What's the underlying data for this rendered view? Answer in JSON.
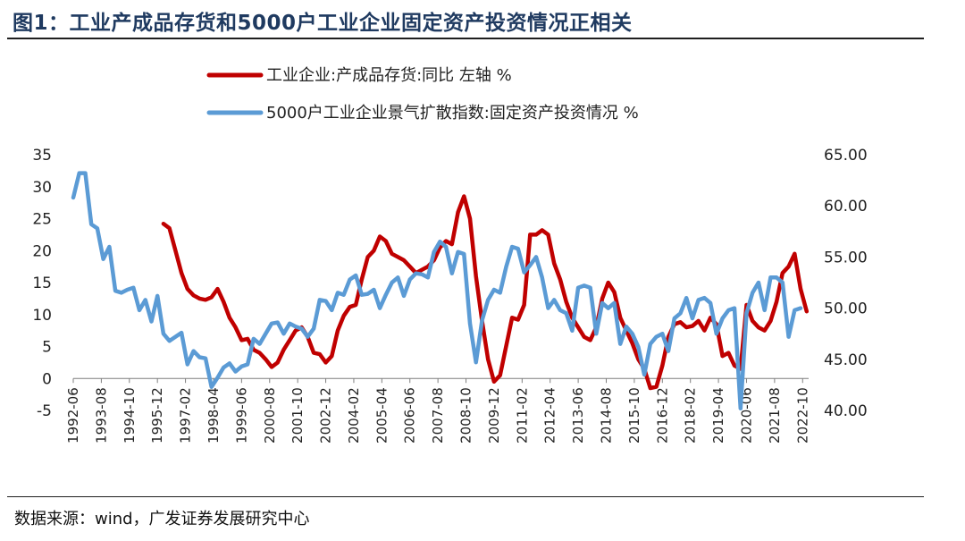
{
  "title": "图1：工业产成品存货和5000户工业企业固定资产投资情况正相关",
  "source": "数据来源：wind，广发证券发展研究中心",
  "colors": {
    "title": "#1f3a60",
    "red": "#c00000",
    "blue": "#5b9bd5"
  },
  "chart_data": {
    "type": "line",
    "legend_position": "top-center",
    "grid": false,
    "x_tick_labels": [
      "1992-06",
      "1993-08",
      "1994-10",
      "1995-12",
      "1997-02",
      "1998-04",
      "1999-06",
      "2000-08",
      "2001-10",
      "2002-12",
      "2004-02",
      "2005-04",
      "2006-06",
      "2007-08",
      "2008-10",
      "2009-12",
      "2011-02",
      "2012-04",
      "2013-06",
      "2014-08",
      "2015-10",
      "2016-12",
      "2018-02",
      "2019-04",
      "2020-06",
      "2021-08",
      "2022-10"
    ],
    "y_left": {
      "range": [
        -5,
        35
      ],
      "ticks": [
        "35",
        "30",
        "25",
        "20",
        "15",
        "10",
        "5",
        "0",
        "-5"
      ]
    },
    "y_right": {
      "range": [
        40,
        65
      ],
      "ticks": [
        "65.00",
        "60.00",
        "55.00",
        "50.00",
        "45.00",
        "40.00"
      ]
    },
    "series": [
      {
        "name": "工业企业:产成品存货:同比  左轴 %",
        "axis": "left",
        "color": "#c00000",
        "points": [
          [
            "1996-03",
            24.2
          ],
          [
            "1996-06",
            23.5
          ],
          [
            "1996-09",
            20.0
          ],
          [
            "1996-12",
            16.5
          ],
          [
            "1997-03",
            14.0
          ],
          [
            "1997-06",
            13.0
          ],
          [
            "1997-09",
            12.5
          ],
          [
            "1997-12",
            12.3
          ],
          [
            "1998-03",
            12.7
          ],
          [
            "1998-06",
            14.0
          ],
          [
            "1998-09",
            12.0
          ],
          [
            "1998-12",
            9.5
          ],
          [
            "1999-03",
            8.0
          ],
          [
            "1999-06",
            6.0
          ],
          [
            "1999-09",
            6.2
          ],
          [
            "1999-12",
            4.5
          ],
          [
            "2000-03",
            4.0
          ],
          [
            "2000-06",
            3.0
          ],
          [
            "2000-09",
            1.8
          ],
          [
            "2000-12",
            2.5
          ],
          [
            "2001-03",
            4.5
          ],
          [
            "2001-06",
            6.0
          ],
          [
            "2001-09",
            7.5
          ],
          [
            "2001-12",
            8.0
          ],
          [
            "2002-03",
            6.5
          ],
          [
            "2002-06",
            4.0
          ],
          [
            "2002-09",
            3.8
          ],
          [
            "2002-12",
            2.5
          ],
          [
            "2003-03",
            3.5
          ],
          [
            "2003-06",
            7.5
          ],
          [
            "2003-09",
            9.8
          ],
          [
            "2003-12",
            11.2
          ],
          [
            "2004-03",
            11.5
          ],
          [
            "2004-06",
            15.5
          ],
          [
            "2004-09",
            19.0
          ],
          [
            "2004-12",
            20.0
          ],
          [
            "2005-03",
            22.2
          ],
          [
            "2005-06",
            21.5
          ],
          [
            "2005-09",
            19.5
          ],
          [
            "2005-12",
            19.0
          ],
          [
            "2006-03",
            18.5
          ],
          [
            "2006-06",
            17.5
          ],
          [
            "2006-09",
            16.5
          ],
          [
            "2006-12",
            17.0
          ],
          [
            "2007-03",
            17.5
          ],
          [
            "2007-06",
            18.5
          ],
          [
            "2007-09",
            20.5
          ],
          [
            "2007-12",
            21.5
          ],
          [
            "2008-03",
            21.0
          ],
          [
            "2008-06",
            26.0
          ],
          [
            "2008-09",
            28.5
          ],
          [
            "2008-12",
            25.0
          ],
          [
            "2009-03",
            16.0
          ],
          [
            "2009-06",
            9.0
          ],
          [
            "2009-09",
            3.0
          ],
          [
            "2009-12",
            -0.5
          ],
          [
            "2010-03",
            0.5
          ],
          [
            "2010-06",
            5.0
          ],
          [
            "2010-09",
            9.5
          ],
          [
            "2010-12",
            9.2
          ],
          [
            "2011-03",
            11.5
          ],
          [
            "2011-06",
            22.5
          ],
          [
            "2011-09",
            22.5
          ],
          [
            "2011-12",
            23.2
          ],
          [
            "2012-03",
            22.5
          ],
          [
            "2012-06",
            18.0
          ],
          [
            "2012-09",
            15.5
          ],
          [
            "2012-12",
            12.0
          ],
          [
            "2013-03",
            9.5
          ],
          [
            "2013-06",
            8.0
          ],
          [
            "2013-09",
            6.5
          ],
          [
            "2013-12",
            6.0
          ],
          [
            "2014-03",
            8.0
          ],
          [
            "2014-06",
            12.5
          ],
          [
            "2014-09",
            15.0
          ],
          [
            "2014-12",
            13.5
          ],
          [
            "2015-03",
            9.5
          ],
          [
            "2015-06",
            7.5
          ],
          [
            "2015-09",
            5.5
          ],
          [
            "2015-12",
            3.0
          ],
          [
            "2016-03",
            1.5
          ],
          [
            "2016-06",
            -1.5
          ],
          [
            "2016-09",
            -1.3
          ],
          [
            "2016-12",
            2.0
          ],
          [
            "2017-03",
            6.5
          ],
          [
            "2017-06",
            8.5
          ],
          [
            "2017-09",
            8.8
          ],
          [
            "2017-12",
            8.0
          ],
          [
            "2018-03",
            8.2
          ],
          [
            "2018-06",
            9.0
          ],
          [
            "2018-09",
            7.5
          ],
          [
            "2018-12",
            9.5
          ],
          [
            "2019-03",
            8.5
          ],
          [
            "2019-06",
            3.5
          ],
          [
            "2019-09",
            4.0
          ],
          [
            "2019-12",
            2.0
          ],
          [
            "2020-03",
            1.5
          ],
          [
            "2020-06",
            11.5
          ],
          [
            "2020-09",
            9.0
          ],
          [
            "2020-12",
            8.0
          ],
          [
            "2021-03",
            7.5
          ],
          [
            "2021-06",
            9.0
          ],
          [
            "2021-09",
            12.0
          ],
          [
            "2021-12",
            16.5
          ],
          [
            "2022-03",
            17.5
          ],
          [
            "2022-06",
            19.5
          ],
          [
            "2022-09",
            14.0
          ],
          [
            "2022-12",
            10.5
          ]
        ]
      },
      {
        "name": "5000户工业企业景气扩散指数:固定资产投资情况 %",
        "axis": "right",
        "color": "#5b9bd5",
        "points": [
          [
            "1992-06",
            60.8
          ],
          [
            "1992-09",
            63.2
          ],
          [
            "1992-12",
            63.2
          ],
          [
            "1993-03",
            58.2
          ],
          [
            "1993-06",
            57.8
          ],
          [
            "1993-09",
            54.8
          ],
          [
            "1993-12",
            56.0
          ],
          [
            "1994-03",
            51.7
          ],
          [
            "1994-06",
            51.5
          ],
          [
            "1994-09",
            51.8
          ],
          [
            "1994-12",
            52.0
          ],
          [
            "1995-03",
            49.8
          ],
          [
            "1995-06",
            50.8
          ],
          [
            "1995-09",
            48.7
          ],
          [
            "1995-12",
            51.2
          ],
          [
            "1996-03",
            47.5
          ],
          [
            "1996-06",
            46.8
          ],
          [
            "1996-09",
            47.2
          ],
          [
            "1996-12",
            47.6
          ],
          [
            "1997-03",
            44.5
          ],
          [
            "1997-06",
            45.8
          ],
          [
            "1997-09",
            45.2
          ],
          [
            "1997-12",
            45.1
          ],
          [
            "1998-03",
            42.3
          ],
          [
            "1998-06",
            43.2
          ],
          [
            "1998-09",
            44.2
          ],
          [
            "1998-12",
            44.6
          ],
          [
            "1999-03",
            43.8
          ],
          [
            "1999-06",
            44.3
          ],
          [
            "1999-09",
            44.5
          ],
          [
            "1999-12",
            47.0
          ],
          [
            "2000-03",
            46.5
          ],
          [
            "2000-06",
            47.5
          ],
          [
            "2000-09",
            48.5
          ],
          [
            "2000-12",
            48.6
          ],
          [
            "2001-03",
            47.5
          ],
          [
            "2001-06",
            48.5
          ],
          [
            "2001-09",
            48.2
          ],
          [
            "2001-12",
            48.0
          ],
          [
            "2002-03",
            47.2
          ],
          [
            "2002-06",
            48.0
          ],
          [
            "2002-09",
            50.8
          ],
          [
            "2002-12",
            50.7
          ],
          [
            "2003-03",
            49.8
          ],
          [
            "2003-06",
            51.5
          ],
          [
            "2003-09",
            51.3
          ],
          [
            "2003-12",
            52.8
          ],
          [
            "2004-03",
            53.2
          ],
          [
            "2004-06",
            51.3
          ],
          [
            "2004-09",
            51.4
          ],
          [
            "2004-12",
            51.8
          ],
          [
            "2005-03",
            50.0
          ],
          [
            "2005-06",
            51.3
          ],
          [
            "2005-09",
            52.5
          ],
          [
            "2005-12",
            53.0
          ],
          [
            "2006-03",
            51.2
          ],
          [
            "2006-06",
            52.8
          ],
          [
            "2006-09",
            53.4
          ],
          [
            "2006-12",
            53.3
          ],
          [
            "2007-03",
            53.0
          ],
          [
            "2007-06",
            55.5
          ],
          [
            "2007-09",
            56.5
          ],
          [
            "2007-12",
            56.0
          ],
          [
            "2008-03",
            53.4
          ],
          [
            "2008-06",
            55.5
          ],
          [
            "2008-09",
            55.3
          ],
          [
            "2008-12",
            48.5
          ],
          [
            "2009-03",
            44.7
          ],
          [
            "2009-06",
            48.8
          ],
          [
            "2009-09",
            50.8
          ],
          [
            "2009-12",
            51.8
          ],
          [
            "2010-03",
            51.5
          ],
          [
            "2010-06",
            54.0
          ],
          [
            "2010-09",
            56.0
          ],
          [
            "2010-12",
            55.8
          ],
          [
            "2011-03",
            53.5
          ],
          [
            "2011-06",
            54.2
          ],
          [
            "2011-09",
            55.0
          ],
          [
            "2011-12",
            53.0
          ],
          [
            "2012-03",
            50.0
          ],
          [
            "2012-06",
            50.8
          ],
          [
            "2012-09",
            49.8
          ],
          [
            "2012-12",
            49.5
          ],
          [
            "2013-03",
            47.8
          ],
          [
            "2013-06",
            52.0
          ],
          [
            "2013-09",
            52.2
          ],
          [
            "2013-12",
            52.0
          ],
          [
            "2014-03",
            47.5
          ],
          [
            "2014-06",
            50.5
          ],
          [
            "2014-09",
            50.0
          ],
          [
            "2014-12",
            50.5
          ],
          [
            "2015-03",
            46.5
          ],
          [
            "2015-06",
            48.2
          ],
          [
            "2015-09",
            47.5
          ],
          [
            "2015-12",
            46.2
          ],
          [
            "2016-03",
            43.5
          ],
          [
            "2016-06",
            46.5
          ],
          [
            "2016-09",
            47.2
          ],
          [
            "2016-12",
            47.5
          ],
          [
            "2017-03",
            45.8
          ],
          [
            "2017-06",
            49.0
          ],
          [
            "2017-09",
            49.5
          ],
          [
            "2017-12",
            51.0
          ],
          [
            "2018-03",
            49.0
          ],
          [
            "2018-06",
            50.8
          ],
          [
            "2018-09",
            51.0
          ],
          [
            "2018-12",
            50.5
          ],
          [
            "2019-03",
            47.5
          ],
          [
            "2019-06",
            49.0
          ],
          [
            "2019-09",
            49.8
          ],
          [
            "2019-12",
            50.0
          ],
          [
            "2020-03",
            40.2
          ],
          [
            "2020-06",
            49.5
          ],
          [
            "2020-09",
            51.5
          ],
          [
            "2020-12",
            52.5
          ],
          [
            "2021-03",
            49.8
          ],
          [
            "2021-06",
            53.0
          ],
          [
            "2021-09",
            53.0
          ],
          [
            "2021-12",
            52.5
          ],
          [
            "2022-03",
            47.2
          ],
          [
            "2022-06",
            49.8
          ],
          [
            "2022-09",
            50.0
          ]
        ]
      }
    ]
  }
}
